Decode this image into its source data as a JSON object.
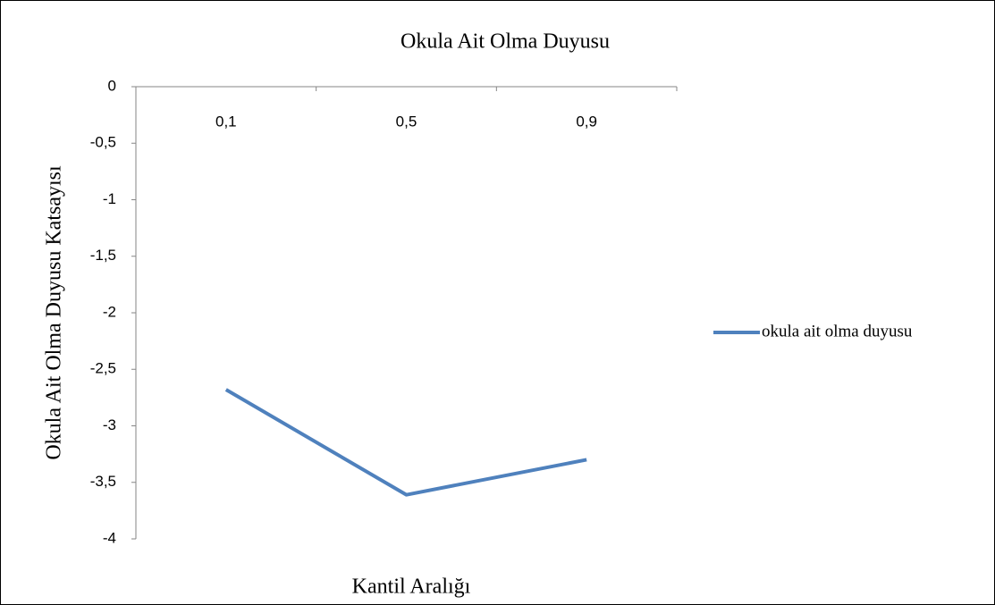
{
  "chart_data": {
    "type": "line",
    "title": "Okula Ait Olma Duyusu",
    "x_label": "Kantil Aralığı",
    "y_label": "Okula Ait Olma Duyusu Katsayısı",
    "categories": [
      "0,1",
      "0,5",
      "0,9"
    ],
    "series": [
      {
        "name": "okula ait olma duyusu",
        "color": "#4f81bd",
        "values": [
          -2.68,
          -3.61,
          -3.3
        ]
      }
    ],
    "ylim": [
      -4,
      0
    ],
    "yticks": [
      0,
      {
        "value": -0.5,
        "label": "-0,5"
      },
      -1,
      {
        "value": -1.5,
        "label": "-1,5"
      },
      -2,
      {
        "value": -2.5,
        "label": "-2,5"
      },
      -3,
      {
        "value": -3.5,
        "label": "-3,5"
      },
      -4
    ],
    "legend": "right"
  }
}
